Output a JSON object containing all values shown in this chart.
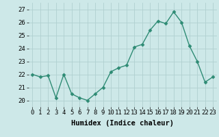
{
  "x": [
    0,
    1,
    2,
    3,
    4,
    5,
    6,
    7,
    8,
    9,
    10,
    11,
    12,
    13,
    14,
    15,
    16,
    17,
    18,
    19,
    20,
    21,
    22,
    23
  ],
  "y": [
    22,
    21.8,
    21.9,
    20.2,
    22,
    20.5,
    20.2,
    20.0,
    20.5,
    21.0,
    22.2,
    22.5,
    22.7,
    24.1,
    24.3,
    25.4,
    26.1,
    25.9,
    26.8,
    26.0,
    24.2,
    23.0,
    21.4,
    21.8
  ],
  "line_color": "#2e8b74",
  "marker": "D",
  "marker_size": 2.5,
  "bg_color": "#cde8e8",
  "grid_color": "#b0d0d0",
  "xlabel": "Humidex (Indice chaleur)",
  "ylim": [
    19.5,
    27.5
  ],
  "xlim": [
    -0.5,
    23.5
  ],
  "yticks": [
    20,
    21,
    22,
    23,
    24,
    25,
    26,
    27
  ],
  "xticks": [
    0,
    1,
    2,
    3,
    4,
    5,
    6,
    7,
    8,
    9,
    10,
    11,
    12,
    13,
    14,
    15,
    16,
    17,
    18,
    19,
    20,
    21,
    22,
    23
  ],
  "xlabel_fontsize": 7.5,
  "tick_fontsize": 6.5,
  "line_width": 1.0
}
